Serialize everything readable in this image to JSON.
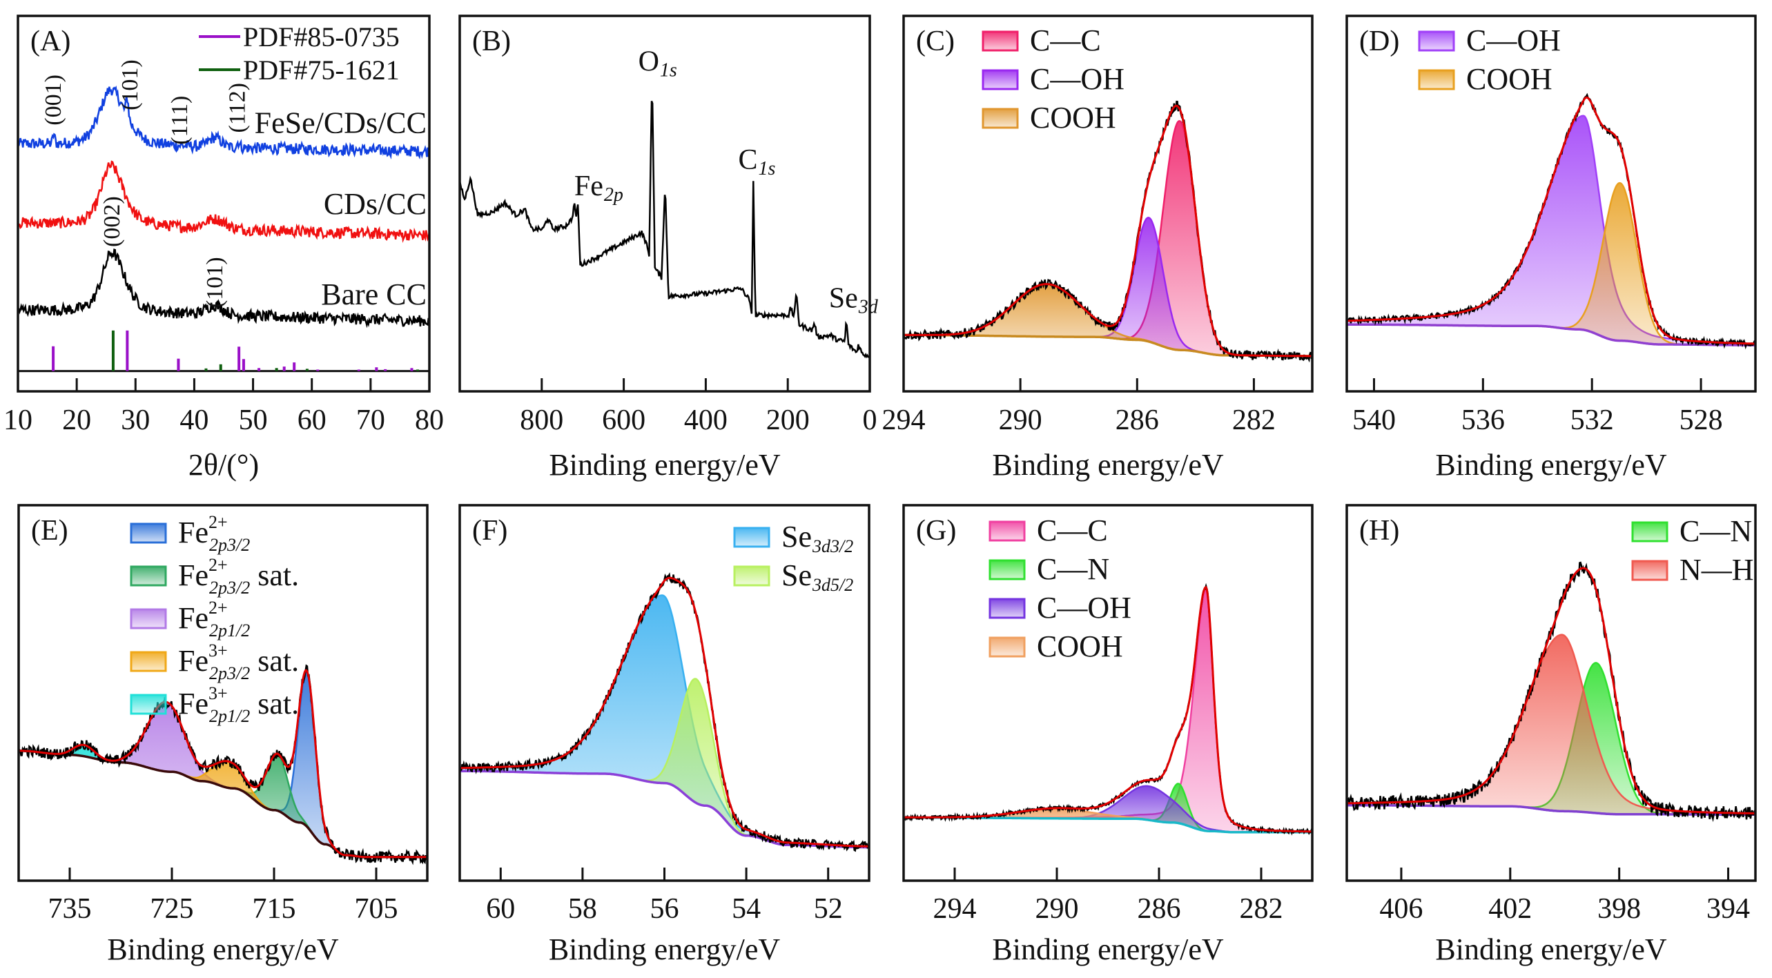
{
  "chart_data": [
    {
      "panel_label": "(A)",
      "type": "line",
      "xlabel": "2θ/(°)",
      "xlim": [
        10,
        80
      ],
      "xticks": [
        10,
        20,
        30,
        40,
        50,
        60,
        70,
        80
      ],
      "ylim": [
        0,
        100
      ],
      "y_units": "intensity (a.u.)",
      "legend": {
        "placement": "top-right",
        "entries": [
          {
            "text": "PDF#85-0735",
            "color": "#9a10c8"
          },
          {
            "text": "PDF#75-1621",
            "color": "#106010"
          }
        ]
      },
      "series": [
        {
          "name": "FeSe/CDs/CC",
          "color": "#1040e0",
          "baseline": [
            65.8,
            63.9
          ],
          "peaks": [
            {
              "center": 25.8,
              "fwhm": 4.5,
              "height": 15,
              "lorentz": 0.5,
              "asym": 1.3
            },
            {
              "center": 28.6,
              "fwhm": 0.5,
              "height": 5
            },
            {
              "center": 16.1,
              "fwhm": 0.4,
              "height": 2.5
            },
            {
              "center": 43.5,
              "fwhm": 2.5,
              "height": 2.5
            },
            {
              "center": 47.5,
              "fwhm": 0.6,
              "height": 1.5
            }
          ]
        },
        {
          "name": "CDs/CC",
          "color": "#f01010",
          "baseline": [
            44.8,
            41.5
          ],
          "peaks": [
            {
              "center": 25.8,
              "fwhm": 4,
              "height": 16,
              "lorentz": 0.5,
              "asym": 1.3
            },
            {
              "center": 43.5,
              "fwhm": 4,
              "height": 2.5
            }
          ]
        },
        {
          "name": "Bare CC",
          "color": "#000000",
          "baseline": [
            21.6,
            18.7
          ],
          "peaks": [
            {
              "center": 26,
              "fwhm": 4,
              "height": 16,
              "lorentz": 0.5,
              "asym": 1.3
            },
            {
              "center": 43.5,
              "fwhm": 3.5,
              "height": 2.5
            }
          ]
        }
      ],
      "reference_baseline": 5.4,
      "references": [
        {
          "name": "PDF#85-0735",
          "color": "#9a10c8",
          "positions": [
            16,
            28.6,
            37.3,
            47.6,
            48.4,
            51,
            55.3,
            57,
            61,
            68,
            71,
            72.5,
            77
          ],
          "heights": [
            6.6,
            10.8,
            3.3,
            6.5,
            3.2,
            0.8,
            1.2,
            2.3,
            0.4,
            0.4,
            1.0,
            0.5,
            0.8
          ]
        },
        {
          "name": "PDF#75-1621",
          "color": "#106010",
          "positions": [
            26.2,
            42,
            44.5,
            54,
            59.2,
            78
          ],
          "heights": [
            10.8,
            0.7,
            1.8,
            0.8,
            0.6,
            0.4
          ]
        }
      ],
      "annotations": [
        {
          "text": "(001)",
          "x": 16
        },
        {
          "text": "(101)",
          "x": 29
        },
        {
          "text": "(111)",
          "x": 37.5
        },
        {
          "text": "(112)",
          "x": 47.3
        },
        {
          "text": "(002)",
          "x": 26
        },
        {
          "text": "(101)",
          "x": 43.5
        }
      ]
    },
    {
      "panel_label": "(B)",
      "type": "line",
      "xlabel": "Binding energy/eV",
      "xlim": [
        1000,
        0
      ],
      "xticks": [
        800,
        600,
        400,
        200,
        0
      ],
      "ylim": [
        0,
        100
      ],
      "y_units": "intensity (a.u.)",
      "color": "#000000",
      "points": [
        [
          997,
          54.4
        ],
        [
          988,
          51
        ],
        [
          974,
          56.8
        ],
        [
          956,
          46.9
        ],
        [
          921,
          47.7
        ],
        [
          890,
          50.2
        ],
        [
          863,
          46.9
        ],
        [
          841,
          48.5
        ],
        [
          825,
          43.2
        ],
        [
          797,
          43.2
        ],
        [
          786,
          46
        ],
        [
          772,
          43.2
        ],
        [
          742,
          44
        ],
        [
          726,
          46
        ],
        [
          720,
          50.2
        ],
        [
          716,
          46
        ],
        [
          712,
          50.2
        ],
        [
          706,
          33.6
        ],
        [
          673,
          35.3
        ],
        [
          556,
          42.3
        ],
        [
          545,
          39.4
        ],
        [
          538,
          36.1
        ],
        [
          531,
          84.2
        ],
        [
          524,
          32.8
        ],
        [
          508,
          30.3
        ],
        [
          499,
          54.8
        ],
        [
          491,
          25.3
        ],
        [
          397,
          26.1
        ],
        [
          314,
          27.4
        ],
        [
          294,
          24.5
        ],
        [
          288,
          20.3
        ],
        [
          284,
          56
        ],
        [
          279,
          20.3
        ],
        [
          197,
          20.3
        ],
        [
          193,
          22.4
        ],
        [
          186,
          19.9
        ],
        [
          179,
          25.7
        ],
        [
          172,
          17.8
        ],
        [
          141,
          16.2
        ],
        [
          135,
          18.3
        ],
        [
          128,
          14.5
        ],
        [
          94,
          14.9
        ],
        [
          80,
          13.7
        ],
        [
          61,
          13.3
        ],
        [
          57,
          19.1
        ],
        [
          52,
          12.4
        ],
        [
          32,
          10.4
        ],
        [
          28,
          12.4
        ],
        [
          18,
          10
        ],
        [
          4,
          9.5
        ]
      ],
      "annotations": [
        {
          "text": "O",
          "sub": "1s",
          "x": 531
        },
        {
          "text": "C",
          "sub": "1s",
          "x": 287
        },
        {
          "text": "Fe",
          "sub": "2p",
          "x": 687
        },
        {
          "text": "Se",
          "sub": "3d",
          "x": 66
        }
      ]
    },
    {
      "panel_label": "(C)",
      "type": "area",
      "xlabel": "Binding energy/eV",
      "xlim": [
        294,
        280
      ],
      "xticks": [
        294,
        290,
        286,
        282
      ],
      "ylim": [
        0,
        100
      ],
      "legend": {
        "placement": "top-left"
      },
      "envelope_color": "#e00000",
      "raw_color": "#000000",
      "background_color": "#c88a20",
      "background": [
        [
          294,
          15
        ],
        [
          287.5,
          14.5
        ],
        [
          286,
          13.7
        ],
        [
          284.5,
          11
        ],
        [
          283,
          9.6
        ],
        [
          280,
          9.4
        ]
      ],
      "components": [
        {
          "label": {
            "text": "C—C"
          },
          "color": "#f0206a",
          "center": 284.55,
          "fwhm": 1.3,
          "height": 61
        },
        {
          "label": {
            "text": "C—OH"
          },
          "color": "#9a28f0",
          "center": 285.6,
          "fwhm": 1.15,
          "height": 33
        },
        {
          "label": {
            "text": "COOH"
          },
          "color": "#e0962e",
          "center": 289.1,
          "fwhm": 2.7,
          "height": 14
        }
      ]
    },
    {
      "panel_label": "(D)",
      "type": "area",
      "xlabel": "Binding energy/eV",
      "xlim": [
        541,
        526
      ],
      "xticks": [
        540,
        536,
        532,
        528
      ],
      "ylim": [
        0,
        100
      ],
      "legend": {
        "placement": "top-left"
      },
      "envelope_color": "#e00000",
      "raw_color": "#000000",
      "background_color": "#9040d0",
      "background": [
        [
          541,
          17.8
        ],
        [
          534,
          17.4
        ],
        [
          532.5,
          16.5
        ],
        [
          531,
          13.5
        ],
        [
          529.5,
          12.5
        ],
        [
          526,
          12.3
        ]
      ],
      "components": [
        {
          "label": {
            "text": "C—OH"
          },
          "color": "#a040f8",
          "center": 532.3,
          "fwhm": 1.5,
          "height": 57,
          "lorentz": 0.5,
          "asym": 2.2
        },
        {
          "label": {
            "text": "COOH"
          },
          "color": "#e8a020",
          "center": 530.98,
          "fwhm": 1.45,
          "height": 42
        }
      ]
    },
    {
      "panel_label": "(E)",
      "type": "area",
      "xlabel": "Binding energy/eV",
      "xlim": [
        740,
        700
      ],
      "xticks": [
        735,
        725,
        715,
        705
      ],
      "ylim": [
        0,
        100
      ],
      "legend": {
        "placement": "top-left"
      },
      "envelope_color": "#e00000",
      "raw_color": "#000000",
      "background_color": "#3a0a0a",
      "background": [
        [
          740,
          34.6
        ],
        [
          735,
          33.5
        ],
        [
          730,
          31.5
        ],
        [
          725,
          29
        ],
        [
          722,
          26.5
        ],
        [
          719,
          24.6
        ],
        [
          715,
          18.8
        ],
        [
          712.5,
          15.5
        ],
        [
          710,
          9.7
        ],
        [
          708,
          6.8
        ],
        [
          706,
          6.3
        ],
        [
          700,
          6.3
        ]
      ],
      "components": [
        {
          "label": {
            "base": "Fe",
            "sup": "2+",
            "sub": "2p3/2",
            "suffix": ""
          },
          "color": "#2a6fd8",
          "center": 711.8,
          "fwhm": 2.0,
          "height": 41
        },
        {
          "label": {
            "base": "Fe",
            "sup": "2+",
            "sub": "2p3/2",
            "suffix": " sat."
          },
          "color": "#2fa860",
          "center": 714.7,
          "fwhm": 2.6,
          "height": 15
        },
        {
          "label": {
            "base": "Fe",
            "sup": "2+",
            "sub": "2p1/2",
            "suffix": ""
          },
          "color": "#b27ae6",
          "center": 725.6,
          "fwhm": 4.2,
          "height": 18.5
        },
        {
          "label": {
            "base": "Fe",
            "sup": "3+",
            "sub": "2p3/2",
            "suffix": " sat."
          },
          "color": "#f0a818",
          "center": 719.5,
          "fwhm": 3.4,
          "height": 7
        },
        {
          "label": {
            "base": "Fe",
            "sup": "3+",
            "sub": "2p1/2",
            "suffix": " sat."
          },
          "color": "#20e0d8",
          "center": 733.6,
          "fwhm": 2.4,
          "height": 3
        }
      ]
    },
    {
      "panel_label": "(F)",
      "type": "area",
      "xlabel": "Binding energy/eV",
      "xlim": [
        61,
        51
      ],
      "xticks": [
        60,
        58,
        56,
        54,
        52
      ],
      "ylim": [
        0,
        100
      ],
      "legend": {
        "placement": "top-right"
      },
      "envelope_color": "#e00000",
      "raw_color": "#000000",
      "background_color": "#8a40d8",
      "background": [
        [
          61,
          29.2
        ],
        [
          57.5,
          28.5
        ],
        [
          56,
          26
        ],
        [
          55,
          20
        ],
        [
          54,
          12
        ],
        [
          53,
          9.5
        ],
        [
          51,
          8.9
        ]
      ],
      "components": [
        {
          "label": {
            "base": "Se",
            "sub": "3d3/2"
          },
          "color": "#38b0f0",
          "center": 56.05,
          "fwhm": 1.3,
          "height": 50,
          "lorentz": 0.3,
          "asym": 1.8
        },
        {
          "label": {
            "base": "Se",
            "sub": "3d5/2"
          },
          "color": "#b8f060",
          "center": 55.22,
          "fwhm": 0.9,
          "height": 33
        }
      ]
    },
    {
      "panel_label": "(G)",
      "type": "area",
      "xlabel": "Binding energy/eV",
      "xlim": [
        296,
        280
      ],
      "xticks": [
        294,
        290,
        286,
        282
      ],
      "ylim": [
        0,
        100
      ],
      "legend": {
        "placement": "top-left"
      },
      "envelope_color": "#e00000",
      "raw_color": "#000000",
      "background_color": "#18b8c8",
      "background": [
        [
          296,
          16.8
        ],
        [
          287,
          16.5
        ],
        [
          285.5,
          15.5
        ],
        [
          284,
          13.2
        ],
        [
          283,
          12.9
        ],
        [
          280,
          12.9
        ]
      ],
      "components": [
        {
          "label": {
            "text": "C—C"
          },
          "color": "#f040a0",
          "center": 284.16,
          "fwhm": 0.7,
          "height": 64,
          "lorentz": 0.4,
          "asym": 1.6
        },
        {
          "label": {
            "text": "C—N"
          },
          "color": "#30e030",
          "center": 285.24,
          "fwhm": 0.8,
          "height": 10.5
        },
        {
          "label": {
            "text": "C—OH"
          },
          "color": "#7434e0",
          "center": 286.4,
          "fwhm": 2.4,
          "height": 9
        },
        {
          "label": {
            "text": "COOH"
          },
          "color": "#f0a060",
          "center": 290,
          "fwhm": 3.5,
          "height": 2.5
        }
      ]
    },
    {
      "panel_label": "(H)",
      "type": "area",
      "xlabel": "Binding energy/eV",
      "xlim": [
        408,
        393
      ],
      "xticks": [
        406,
        402,
        398,
        394
      ],
      "ylim": [
        0,
        100
      ],
      "legend": {
        "placement": "top-right"
      },
      "envelope_color": "#e00000",
      "raw_color": "#000000",
      "background_color": "#8040d0",
      "background": [
        [
          408,
          20.1
        ],
        [
          402,
          19.8
        ],
        [
          400,
          18.5
        ],
        [
          398,
          17.7
        ],
        [
          393,
          17.6
        ]
      ],
      "components": [
        {
          "label": {
            "text": "C—N"
          },
          "color": "#30e030",
          "center": 398.85,
          "fwhm": 1.7,
          "height": 40
        },
        {
          "label": {
            "text": "N—H"
          },
          "color": "#f05a50",
          "center": 400.1,
          "fwhm": 2.2,
          "height": 47,
          "lorentz": 0.3,
          "asym": 1.4
        }
      ]
    }
  ]
}
